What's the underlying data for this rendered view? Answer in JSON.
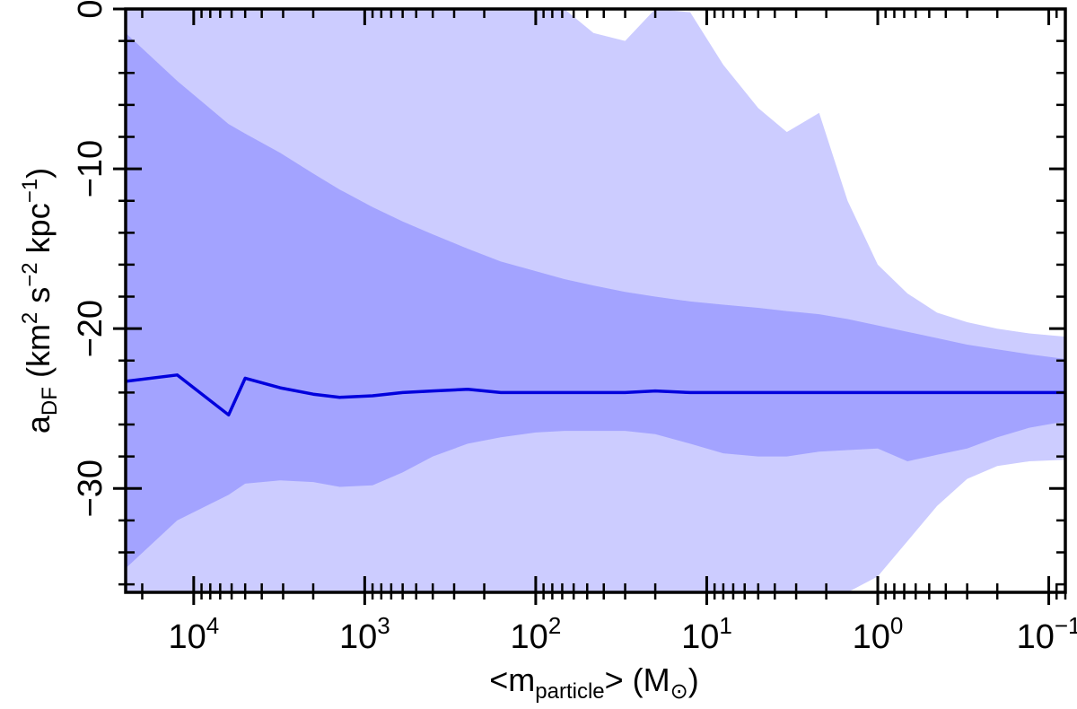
{
  "chart_data": {
    "type": "area",
    "x_scale": "log",
    "x_reversed": true,
    "xlim": [
      25000,
      0.08
    ],
    "ylim": [
      -36.5,
      0
    ],
    "grid": false,
    "legend": "none",
    "x_ticks": [
      {
        "value": 10000,
        "base": "10",
        "exp": "4"
      },
      {
        "value": 1000,
        "base": "10",
        "exp": "3"
      },
      {
        "value": 100,
        "base": "10",
        "exp": "2"
      },
      {
        "value": 10,
        "base": "10",
        "exp": "1"
      },
      {
        "value": 1,
        "base": "10",
        "exp": "0"
      },
      {
        "value": 0.1,
        "base": "10",
        "exp": "−1"
      }
    ],
    "y_ticks": [
      {
        "value": 0,
        "label": "0"
      },
      {
        "value": -10,
        "label": "−10"
      },
      {
        "value": -20,
        "label": "−20"
      },
      {
        "value": -30,
        "label": "−30"
      }
    ],
    "ylabel": {
      "a": "a",
      "a_sub": "DF",
      "open": "(km",
      "sup1": "2",
      "mid1": "s",
      "sup2": "−2",
      "mid2": "kpc",
      "sup3": "−1",
      "close": ")"
    },
    "xlabel": {
      "lt": "<m",
      "sub": "particle",
      "gt": ">",
      "unit_open": "(M",
      "unit_sym": "⊙",
      "unit_close": ")"
    },
    "colors": {
      "outer_band": "#ccccff",
      "inner_band": "#a3a3ff",
      "line": "#0000dd"
    },
    "x": [
      25000,
      12500,
      6250,
      5000,
      3125,
      2000,
      1400,
      900,
      600,
      400,
      250,
      160,
      100,
      68,
      46,
      30,
      20,
      12.5,
      8,
      5,
      3.4,
      2.2,
      1.5,
      1.0,
      0.67,
      0.45,
      0.3,
      0.2,
      0.13,
      0.08
    ],
    "series": [
      {
        "role": "median",
        "values": [
          -23.3,
          -22.9,
          -25.4,
          -23.1,
          -23.7,
          -24.1,
          -24.3,
          -24.2,
          -24.0,
          -23.9,
          -23.8,
          -24.0,
          -24.0,
          -24.0,
          -24.0,
          -24.0,
          -23.9,
          -24.0,
          -24.0,
          -24.0,
          -24.0,
          -24.0,
          -24.0,
          -24.0,
          -24.0,
          -24.0,
          -24.0,
          -24.0,
          -24.0,
          -24.0
        ]
      },
      {
        "role": "inner_band",
        "upper": [
          -1.5,
          -4.5,
          -7.2,
          -7.8,
          -9.0,
          -10.3,
          -11.3,
          -12.4,
          -13.3,
          -14.1,
          -15.0,
          -15.8,
          -16.4,
          -16.9,
          -17.3,
          -17.7,
          -18.0,
          -18.3,
          -18.5,
          -18.7,
          -18.9,
          -19.1,
          -19.4,
          -19.8,
          -20.2,
          -20.6,
          -21.0,
          -21.3,
          -21.6,
          -21.9
        ],
        "lower": [
          -35.0,
          -32.0,
          -30.4,
          -29.7,
          -29.5,
          -29.6,
          -29.9,
          -29.8,
          -29.0,
          -28.0,
          -27.2,
          -26.8,
          -26.5,
          -26.4,
          -26.4,
          -26.4,
          -26.6,
          -27.2,
          -27.8,
          -28.0,
          -28.0,
          -27.7,
          -27.6,
          -27.5,
          -28.3,
          -27.9,
          -27.5,
          -26.8,
          -26.2,
          -25.8
        ]
      },
      {
        "role": "outer_band",
        "upper": [
          0,
          0,
          0,
          0,
          0,
          0,
          0,
          0,
          0,
          0,
          0,
          0,
          0,
          0,
          -1.5,
          -2.0,
          0,
          -0.2,
          -3.5,
          -6.2,
          -7.7,
          -6.5,
          -12.0,
          -16.0,
          -17.8,
          -19.0,
          -19.6,
          -20.0,
          -20.3,
          -20.5
        ],
        "lower": [
          -36.5,
          -36.5,
          -36.5,
          -36.5,
          -36.5,
          -36.5,
          -36.5,
          -36.5,
          -36.5,
          -36.5,
          -36.5,
          -36.5,
          -36.5,
          -36.5,
          -36.5,
          -36.5,
          -36.5,
          -36.5,
          -36.5,
          -36.5,
          -36.5,
          -36.5,
          -36.5,
          -35.5,
          -33.3,
          -31.1,
          -29.4,
          -28.6,
          -28.3,
          -28.2
        ]
      }
    ]
  }
}
